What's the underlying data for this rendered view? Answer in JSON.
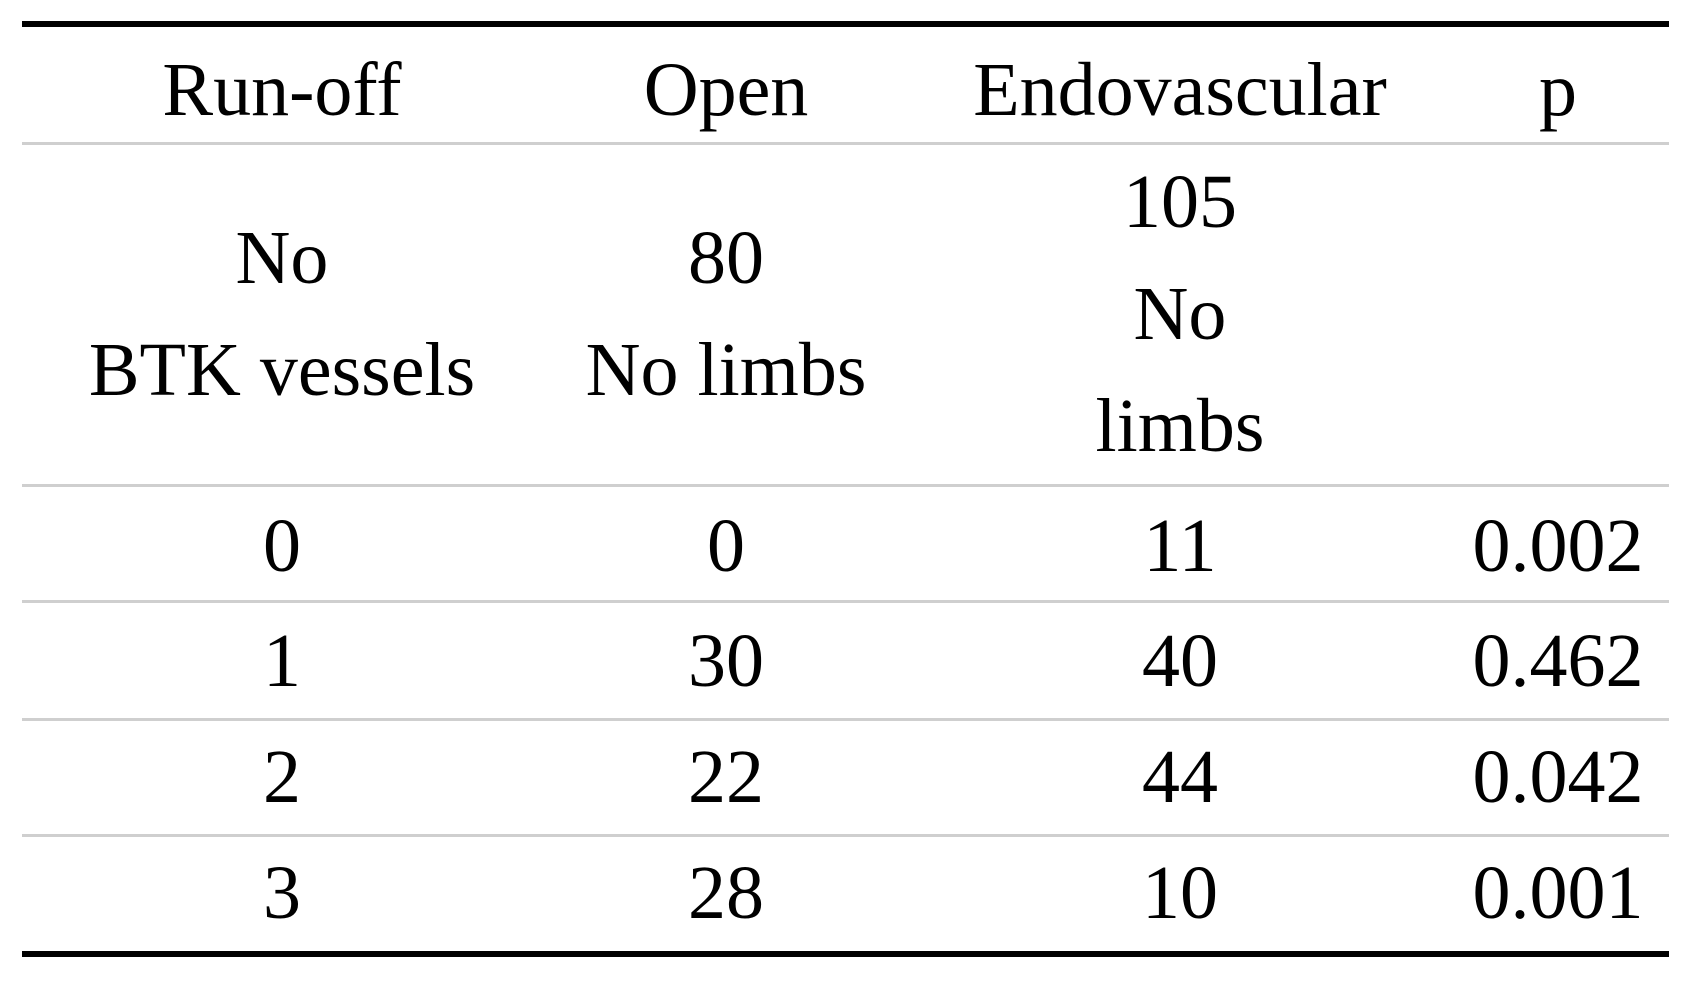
{
  "table": {
    "header": [
      "Run-off",
      "Open",
      "Endovascular",
      "p"
    ],
    "subheader": [
      [
        "No",
        "BTK vessels"
      ],
      [
        "80",
        "No limbs"
      ],
      [
        "105",
        "No",
        "limbs"
      ]
    ],
    "rows": [
      [
        "0",
        "0",
        "11",
        "0.002"
      ],
      [
        "1",
        "30",
        "40",
        "0.462"
      ],
      [
        "2",
        "22",
        "44",
        "0.042"
      ],
      [
        "3",
        "28",
        "10",
        "0.001"
      ]
    ]
  }
}
